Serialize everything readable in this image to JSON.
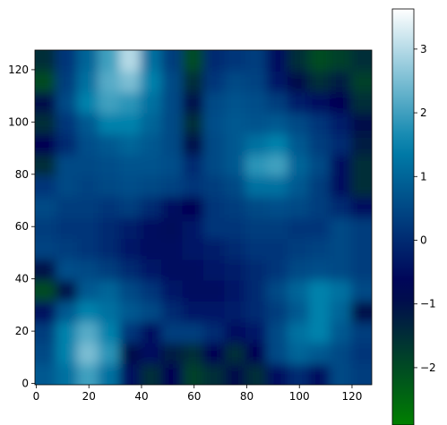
{
  "chart_data": {
    "type": "heatmap",
    "colormap": "ocean",
    "xlim": [
      -0.5,
      127.5
    ],
    "ylim": [
      -0.5,
      127.5
    ],
    "xticks": [
      0,
      20,
      40,
      60,
      80,
      100,
      120
    ],
    "yticks": [
      0,
      20,
      40,
      60,
      80,
      100,
      120
    ],
    "z": [
      [
        0.8,
        1.2,
        2.0,
        1.2,
        -0.5,
        -1.5,
        -0.8,
        -1.8,
        -1.5,
        -1.0,
        -1.5,
        -0.5,
        0.0,
        -0.5,
        0.5,
        0.3
      ],
      [
        0.5,
        1.5,
        2.5,
        1.8,
        -1.0,
        -0.5,
        -1.2,
        -1.5,
        -0.8,
        -1.5,
        -0.8,
        0.5,
        1.0,
        0.8,
        0.5,
        0.2
      ],
      [
        0.3,
        1.5,
        2.2,
        1.5,
        0.2,
        -0.5,
        0.3,
        0.3,
        0.0,
        -0.5,
        -0.3,
        0.5,
        1.2,
        1.5,
        0.8,
        0.3
      ],
      [
        -0.5,
        0.8,
        1.5,
        1.2,
        0.8,
        0.5,
        0.0,
        -0.3,
        -0.3,
        -0.2,
        0.0,
        0.3,
        0.8,
        1.5,
        1.0,
        -1.0
      ],
      [
        -2.0,
        -1.0,
        0.8,
        1.0,
        0.5,
        0.2,
        -0.3,
        -0.5,
        -0.5,
        -0.3,
        0.0,
        0.5,
        1.0,
        1.5,
        1.2,
        0.5
      ],
      [
        -1.0,
        0.6,
        0.5,
        0.3,
        0.0,
        -0.3,
        -0.5,
        -0.5,
        -0.3,
        -0.2,
        0.0,
        0.2,
        0.5,
        0.6,
        0.5,
        0.3
      ],
      [
        0.4,
        0.3,
        0.2,
        0.0,
        -0.3,
        -0.5,
        -0.5,
        -0.3,
        -0.2,
        0.0,
        0.2,
        0.2,
        0.3,
        0.4,
        0.5,
        0.3
      ],
      [
        0.3,
        0.2,
        0.2,
        0.0,
        -0.2,
        -0.5,
        -0.6,
        -0.3,
        0.2,
        0.2,
        0.3,
        0.3,
        0.2,
        0.2,
        0.5,
        0.3
      ],
      [
        0.5,
        0.3,
        0.3,
        0.2,
        0.3,
        0.0,
        -0.5,
        -0.8,
        0.2,
        0.3,
        0.5,
        0.6,
        0.5,
        0.3,
        0.0,
        -0.5
      ],
      [
        0.2,
        0.5,
        0.4,
        0.5,
        0.6,
        0.5,
        0.4,
        0.2,
        0.3,
        0.5,
        1.2,
        1.2,
        0.8,
        0.3,
        -0.5,
        -1.5
      ],
      [
        -1.5,
        0.5,
        0.5,
        0.6,
        0.7,
        0.7,
        0.6,
        0.0,
        0.5,
        0.8,
        1.8,
        2.0,
        1.0,
        0.5,
        -0.5,
        -1.5
      ],
      [
        -0.8,
        0.0,
        0.6,
        0.8,
        1.0,
        0.8,
        0.5,
        -1.0,
        0.5,
        0.8,
        1.2,
        1.5,
        0.8,
        0.3,
        0.0,
        -1.2
      ],
      [
        -1.5,
        0.2,
        0.8,
        1.5,
        1.5,
        1.0,
        0.5,
        -1.5,
        0.6,
        0.8,
        0.7,
        0.8,
        0.5,
        0.2,
        -0.2,
        -1.0
      ],
      [
        -1.0,
        0.5,
        1.5,
        2.0,
        1.8,
        1.2,
        0.5,
        -1.0,
        0.5,
        0.7,
        0.6,
        0.3,
        -0.2,
        -0.5,
        -0.8,
        -1.5
      ],
      [
        -2.0,
        0.3,
        1.2,
        2.2,
        2.5,
        1.5,
        0.5,
        -1.5,
        0.2,
        0.5,
        0.4,
        -0.3,
        -1.0,
        -1.5,
        -1.2,
        -1.8
      ],
      [
        -1.5,
        0.2,
        1.0,
        2.0,
        3.0,
        1.2,
        0.3,
        -2.0,
        0.0,
        0.2,
        0.3,
        -0.5,
        -1.5,
        -2.0,
        -1.8,
        -1.5
      ]
    ],
    "colorbar": {
      "lim": [
        -2.9,
        3.63
      ],
      "ticks": [
        {
          "value": -2,
          "label": "−2"
        },
        {
          "value": -1,
          "label": "−1"
        },
        0,
        1,
        2,
        3
      ]
    }
  }
}
